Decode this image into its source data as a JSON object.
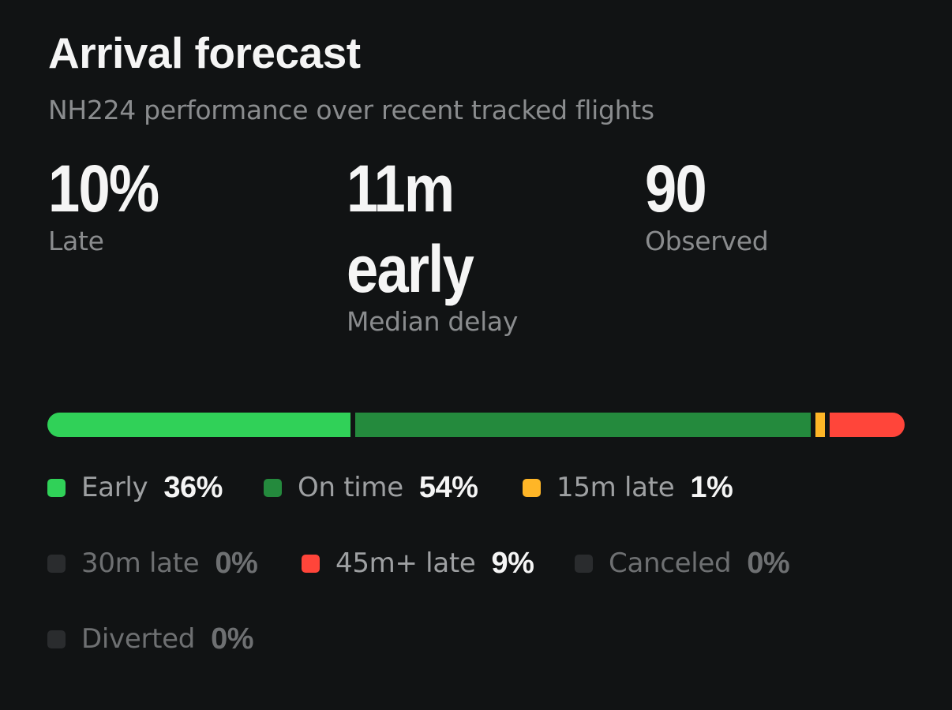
{
  "header": {
    "title": "Arrival forecast",
    "subtitle": "NH224 performance over recent tracked flights"
  },
  "stats": [
    {
      "value": "10%",
      "label": "Late"
    },
    {
      "value_line1": "11m",
      "value_line2": "early",
      "label": "Median delay"
    },
    {
      "value": "90",
      "label": "Observed"
    }
  ],
  "distribution": [
    {
      "label": "Early",
      "pct_text": "36%",
      "percent": 36,
      "color": "#30d158"
    },
    {
      "label": "On time",
      "pct_text": "54%",
      "percent": 54,
      "color": "#248a3d"
    },
    {
      "label": "15m late",
      "pct_text": "1%",
      "percent": 1,
      "color": "#ffb627"
    },
    {
      "label": "30m late",
      "pct_text": "0%",
      "percent": 0,
      "color": "#2a2c2e"
    },
    {
      "label": "45m+ late",
      "pct_text": "9%",
      "percent": 9,
      "color": "#ff453a"
    },
    {
      "label": "Canceled",
      "pct_text": "0%",
      "percent": 0,
      "color": "#2a2c2e"
    },
    {
      "label": "Diverted",
      "pct_text": "0%",
      "percent": 0,
      "color": "#2a2c2e"
    }
  ]
}
